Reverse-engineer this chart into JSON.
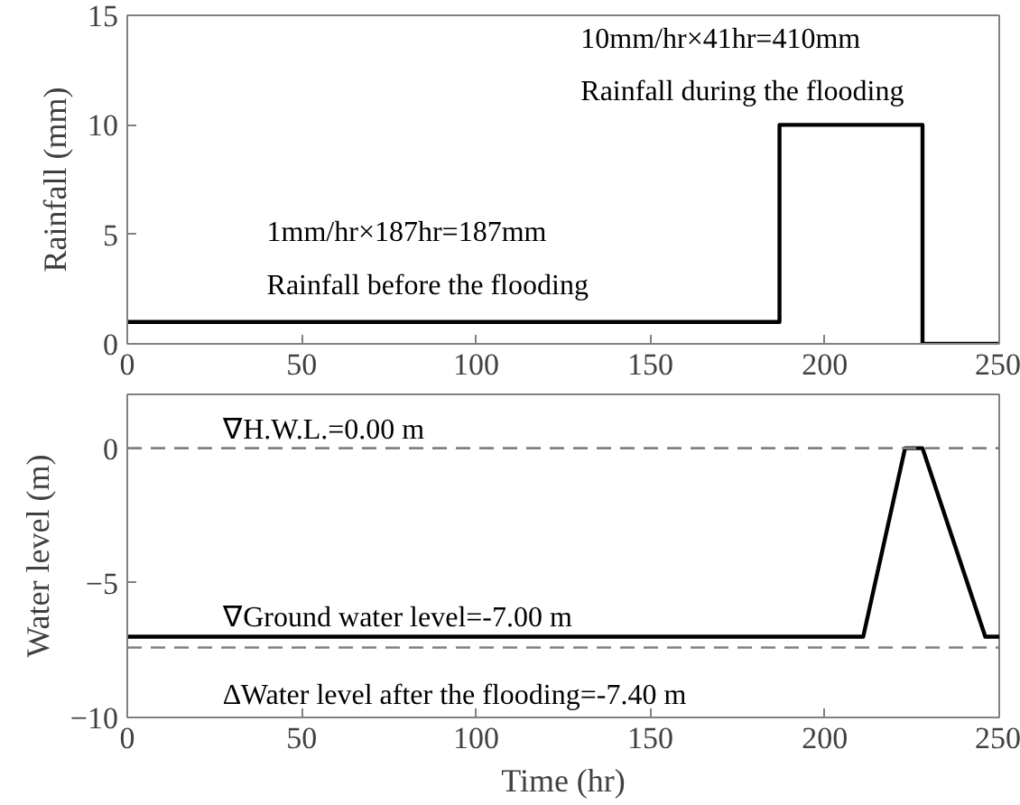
{
  "chart_data": [
    {
      "type": "line",
      "ylabel": "Rainfall (mm)",
      "x": [
        0,
        187,
        187,
        228,
        228,
        250
      ],
      "series": [
        {
          "color": "#000000",
          "values": [
            1,
            1,
            10,
            10,
            0,
            0
          ]
        }
      ],
      "xlim": [
        0,
        250
      ],
      "ylim": [
        0,
        15
      ],
      "xticks": [
        0,
        50,
        100,
        150,
        200,
        250
      ],
      "yticks": [
        0,
        5,
        10,
        15
      ],
      "grid": false,
      "line_style": "solid",
      "annotations": [
        "10mm/hr×41hr=410mm",
        "Rainfall during the flooding",
        "1mm/hr×187hr=187mm",
        "Rainfall before the flooding"
      ]
    },
    {
      "type": "line",
      "xlabel": "Time (hr)",
      "ylabel": "Water level (m)",
      "x": [
        0,
        211,
        223,
        228,
        246,
        250
      ],
      "series": [
        {
          "color": "#000000",
          "values": [
            -7,
            -7,
            0,
            0,
            -7,
            -7
          ]
        }
      ],
      "xlim": [
        0,
        250
      ],
      "ylim": [
        -10,
        2
      ],
      "xticks": [
        0,
        50,
        100,
        150,
        200,
        250
      ],
      "yticks": [
        -10,
        -5,
        0
      ],
      "grid": false,
      "line_style": "solid",
      "ref_lines": [
        {
          "axis": "y",
          "value": 0,
          "color": "#808080",
          "line_style": "dashed"
        },
        {
          "axis": "y",
          "value": -7.4,
          "color": "#808080",
          "line_style": "dashed"
        }
      ],
      "annotations": [
        "∇H.W.L.=0.00 m",
        "∇Ground water level=-7.00 m",
        "∆Water level after the flooding=-7.40 m"
      ]
    }
  ]
}
